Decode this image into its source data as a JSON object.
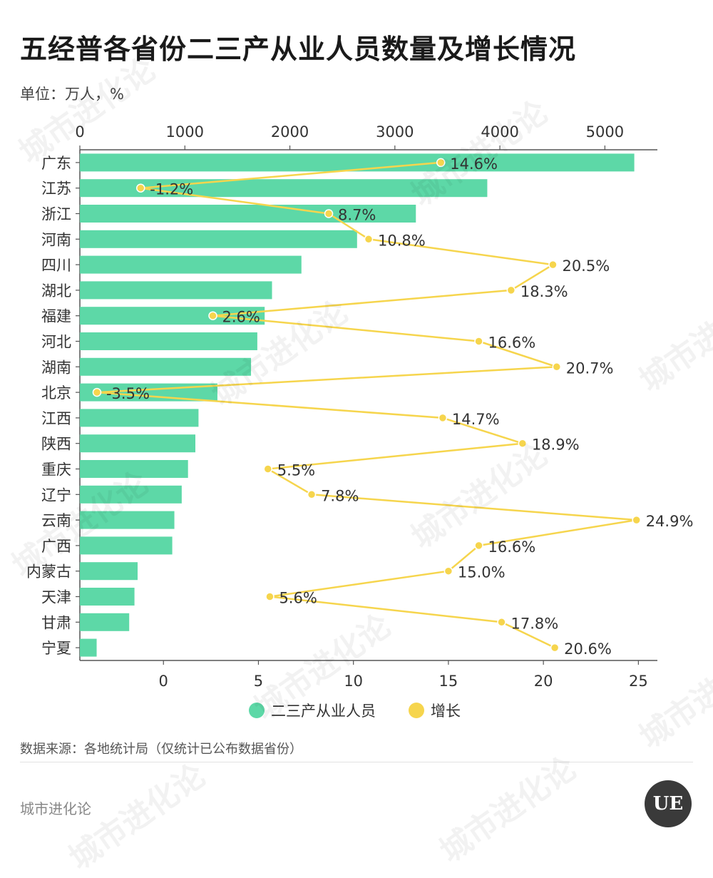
{
  "header": {
    "title": "五经普各省份二三产从业人员数量及增长情况",
    "unit": "单位：万人，%"
  },
  "footer": {
    "source": "数据来源：各地统计局（仅统计已公布数据省份）",
    "brand": "城市进化论",
    "logo_text": "UE"
  },
  "watermark": "城市进化论",
  "colors": {
    "bar": "#5dd8a7",
    "line": "#f6d54d",
    "axis": "#555555"
  },
  "chart_data": {
    "type": "bar",
    "title": "五经普各省份二三产从业人员数量及增长情况",
    "categories": [
      "广东",
      "江苏",
      "浙江",
      "河南",
      "四川",
      "湖北",
      "福建",
      "河北",
      "湖南",
      "北京",
      "江西",
      "陕西",
      "重庆",
      "辽宁",
      "云南",
      "广西",
      "内蒙古",
      "天津",
      "甘肃",
      "宁夏"
    ],
    "series": [
      {
        "name": "二三产从业人员",
        "axis": "top",
        "type": "bar",
        "values": [
          5280,
          3880,
          3200,
          2640,
          2110,
          1830,
          1760,
          1690,
          1630,
          1310,
          1130,
          1100,
          1030,
          970,
          900,
          880,
          550,
          520,
          470,
          160
        ]
      },
      {
        "name": "增长",
        "axis": "bottom",
        "type": "line",
        "values": [
          14.6,
          -1.2,
          8.7,
          10.8,
          20.5,
          18.3,
          2.6,
          16.6,
          20.7,
          -3.5,
          14.7,
          18.9,
          5.5,
          7.8,
          24.9,
          16.6,
          15.0,
          5.6,
          17.8,
          20.6
        ],
        "labels": [
          "14.6%",
          "-1.2%",
          "8.7%",
          "10.8%",
          "20.5%",
          "18.3%",
          "2.6%",
          "16.6%",
          "20.7%",
          "-3.5%",
          "14.7%",
          "18.9%",
          "5.5%",
          "7.8%",
          "24.9%",
          "16.6%",
          "15.0%",
          "5.6%",
          "17.8%",
          "20.6%"
        ]
      }
    ],
    "x_top": {
      "lim": [
        0,
        5500
      ],
      "ticks": [
        "0",
        "1000",
        "2000",
        "3000",
        "4000",
        "5000"
      ],
      "tick_values": [
        0,
        1000,
        2000,
        3000,
        4000,
        5000
      ]
    },
    "x_bottom": {
      "lim": [
        -4.4,
        26
      ],
      "ticks": [
        "0",
        "5",
        "10",
        "15",
        "20",
        "25"
      ],
      "tick_values": [
        0,
        5,
        10,
        15,
        20,
        25
      ]
    },
    "legend": [
      "二三产从业人员",
      "增长"
    ],
    "legend_position": "bottom",
    "grid": false
  }
}
